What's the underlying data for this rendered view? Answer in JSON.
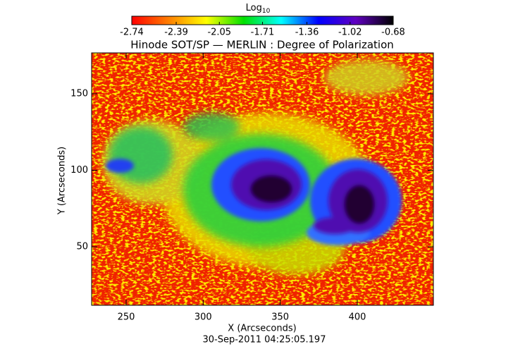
{
  "chart_data": {
    "type": "heatmap",
    "title": "Hinode SOT/SP — MERLIN : Degree of Polarization",
    "x_label": "X (Arcseconds)",
    "y_label": "Y (Arcseconds)",
    "footer": "30-Sep-2011 04:25:05.197",
    "colorbar_label": "Log",
    "colorbar_label_sub": "10",
    "colorbar_lim": [
      -2.74,
      -0.68
    ],
    "colorbar_ticks": [
      -2.74,
      -2.39,
      -2.05,
      -1.71,
      -1.36,
      -1.02,
      -0.68
    ],
    "colormap": [
      "#ff0000",
      "#ff8000",
      "#ffff00",
      "#00e000",
      "#00ffff",
      "#0000ff",
      "#6000c0",
      "#000000"
    ],
    "xlim": [
      227.6,
      449.4
    ],
    "ylim": [
      11.8,
      176.7
    ],
    "xticks": [
      250,
      300,
      350,
      400
    ],
    "yticks": [
      50,
      100,
      150
    ]
  }
}
